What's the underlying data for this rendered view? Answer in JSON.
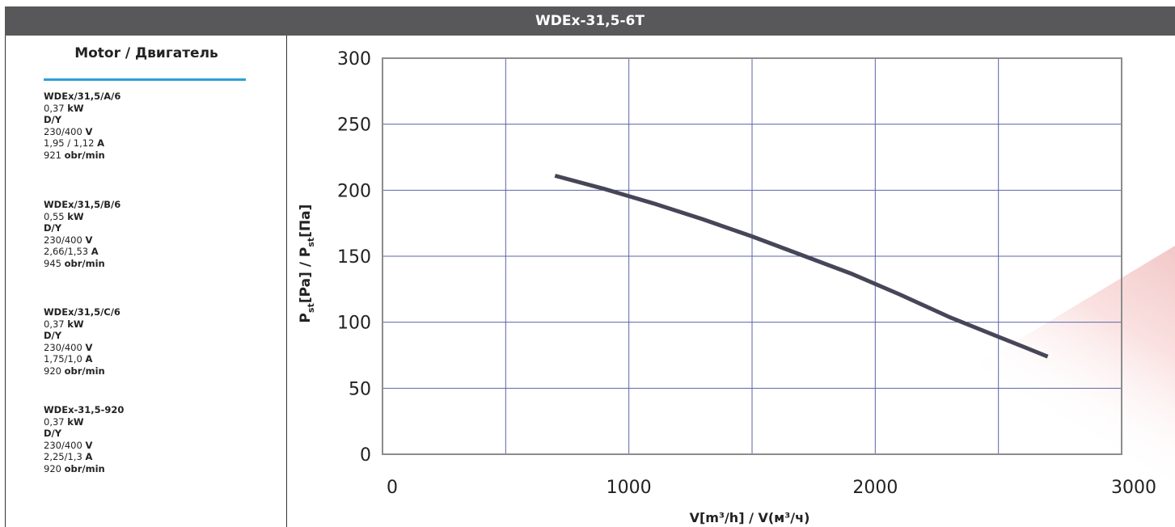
{
  "header": {
    "title": "WDEx-31,5-6T"
  },
  "motor_panel": {
    "title": "Motor / Двигатель",
    "motors": [
      {
        "model": "WDEx/31,5/A/6",
        "power": "0,37",
        "power_unit": "kW",
        "connection": "D/Y",
        "voltage": "230/400",
        "voltage_unit": "V",
        "current": "1,95 / 1,12",
        "current_unit": "A",
        "speed": "921",
        "speed_unit": "obr/min"
      },
      {
        "model": "WDEx/31,5/B/6",
        "power": "0,55",
        "power_unit": "kW",
        "connection": "D/Y",
        "voltage": "230/400",
        "voltage_unit": "V",
        "current": "2,66/1,53",
        "current_unit": "A",
        "speed": "945",
        "speed_unit": "obr/min"
      },
      {
        "model": "WDEx/31,5/C/6",
        "power": "0,37",
        "power_unit": "kW",
        "connection": "D/Y",
        "voltage": "230/400",
        "voltage_unit": "V",
        "current": "1,75/1,0",
        "current_unit": "A",
        "speed": "920",
        "speed_unit": "obr/min"
      },
      {
        "model": "WDEx-31,5-920",
        "power": "0,37",
        "power_unit": "kW",
        "connection": "D/Y",
        "voltage": "230/400",
        "voltage_unit": "V",
        "current": "2,25/1,3",
        "current_unit": "A",
        "speed": "920",
        "speed_unit": "obr/min"
      }
    ]
  },
  "chart_data": {
    "type": "line",
    "xlabel": "V[m³/h] / V(м³/ч)",
    "ylabel": "P_st[Pa] / P_st[Па]",
    "xlim": [
      0,
      3000
    ],
    "ylim": [
      0,
      300
    ],
    "x_ticks": [
      0,
      1000,
      2000,
      3000
    ],
    "x_gridlines": [
      0,
      500,
      1000,
      1500,
      2000,
      2500,
      3000
    ],
    "y_ticks": [
      0,
      50,
      100,
      150,
      200,
      250,
      300
    ],
    "grid": true,
    "series": [
      {
        "color": "#474658",
        "x": [
          700,
          900,
          1100,
          1300,
          1500,
          1700,
          1900,
          2100,
          2300,
          2500,
          2700
        ],
        "y": [
          211,
          201,
          190,
          178,
          165,
          151,
          137,
          121,
          104,
          89,
          74
        ]
      }
    ],
    "colors": {
      "grid": "#5b63a8",
      "axis": "#8c8c8c",
      "curve": "#474658"
    }
  }
}
